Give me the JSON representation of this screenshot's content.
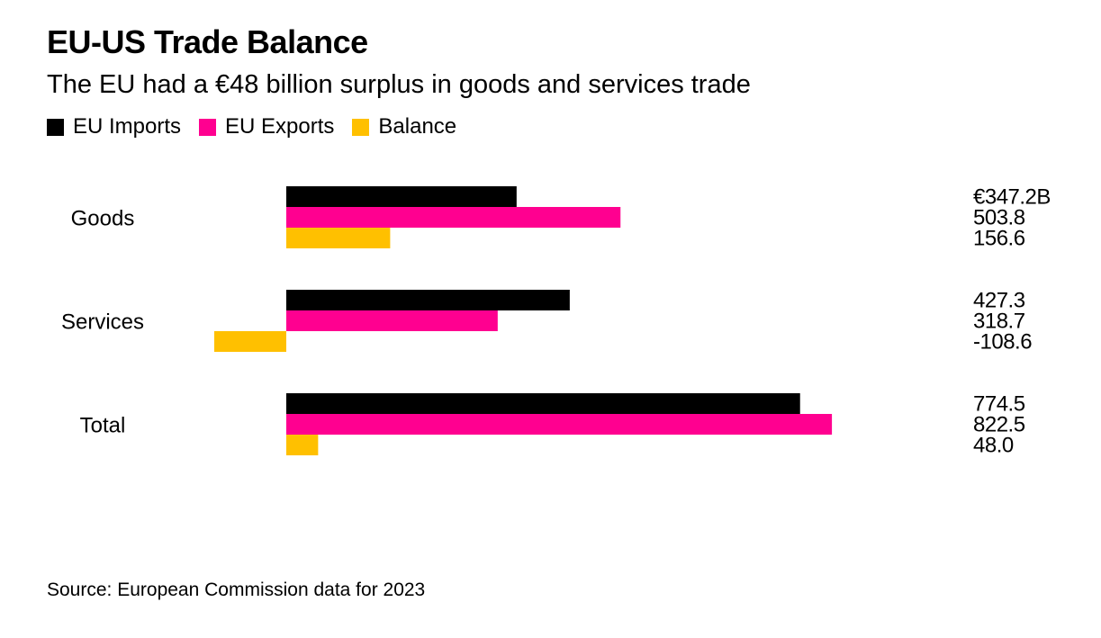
{
  "title": "EU-US Trade Balance",
  "subtitle": "The EU had a €48 billion surplus in goods and services trade",
  "legend": [
    {
      "label": "EU Imports",
      "color": "#000000"
    },
    {
      "label": "EU Exports",
      "color": "#ff0090"
    },
    {
      "label": "Balance",
      "color": "#ffc000"
    }
  ],
  "source": "Source: European Commission data for 2023",
  "chart_data": {
    "type": "bar",
    "orientation": "horizontal",
    "categories": [
      "Goods",
      "Services",
      "Total"
    ],
    "series": [
      {
        "name": "EU Imports",
        "color": "#000000",
        "values": [
          347.2,
          427.3,
          774.5
        ],
        "labels": [
          "€347.2B",
          "427.3",
          "774.5"
        ]
      },
      {
        "name": "EU Exports",
        "color": "#ff0090",
        "values": [
          503.8,
          318.7,
          822.5
        ],
        "labels": [
          "503.8",
          "318.7",
          "822.5"
        ]
      },
      {
        "name": "Balance",
        "color": "#ffc000",
        "values": [
          156.6,
          -108.6,
          48.0
        ],
        "labels": [
          "156.6",
          "-108.6",
          "48.0"
        ]
      }
    ],
    "grid": false,
    "legend_position": "top-left"
  }
}
